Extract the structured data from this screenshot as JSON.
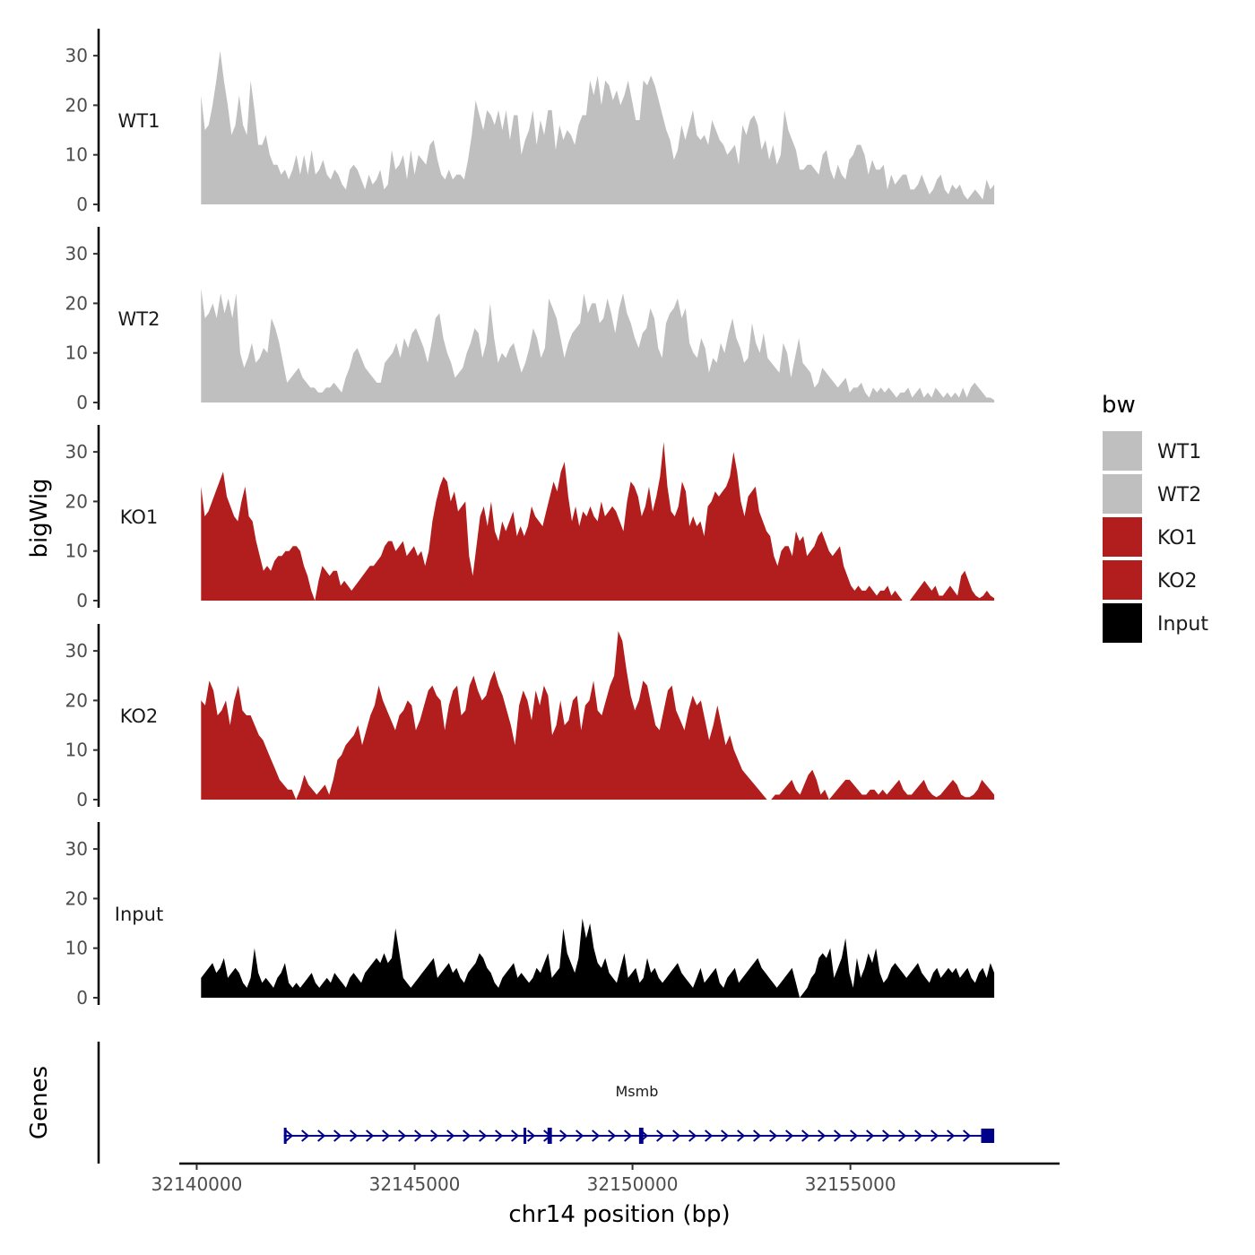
{
  "chart_data": {
    "type": "area",
    "chromosome": "chr14",
    "xlabel": "chr14 position (bp)",
    "ylabel": "bigWig",
    "genes_label": "Genes",
    "xlim": [
      32139600,
      32159800
    ],
    "data_range": [
      32140100,
      32158300
    ],
    "ylim": [
      0,
      36
    ],
    "x_ticks": [
      32140000,
      32145000,
      32150000,
      32155000
    ],
    "x_tick_labels": [
      "32140000",
      "32145000",
      "32150000",
      "32155000"
    ],
    "y_ticks": [
      0,
      10,
      20,
      30
    ],
    "y_tick_labels": [
      "0",
      "10",
      "20",
      "30"
    ],
    "legend": {
      "title": "bw",
      "entries": [
        {
          "label": "WT1",
          "color": "#bfbfbf"
        },
        {
          "label": "WT2",
          "color": "#bfbfbf"
        },
        {
          "label": "KO1",
          "color": "#b21e1e"
        },
        {
          "label": "KO2",
          "color": "#b21e1e"
        },
        {
          "label": "Input",
          "color": "#000000"
        }
      ]
    },
    "series": [
      {
        "name": "WT1",
        "color": "#bfbfbf",
        "values": [
          22,
          15,
          16,
          20,
          25,
          31,
          25,
          20,
          14,
          16,
          22,
          16,
          14,
          25,
          19,
          12,
          12,
          14,
          10,
          8,
          8,
          6,
          7,
          5,
          7,
          10,
          6,
          10,
          6,
          11,
          6,
          7,
          9,
          6,
          5,
          7,
          6,
          4,
          3,
          7,
          8,
          7,
          5,
          3,
          6,
          4,
          5,
          7,
          3,
          4,
          11,
          7,
          8,
          10,
          5,
          11,
          6,
          10,
          9,
          8,
          12,
          13,
          9,
          6,
          5,
          7,
          5,
          6,
          6,
          5,
          9,
          14,
          21,
          18,
          15,
          19,
          18,
          16,
          19,
          15,
          19,
          13,
          18,
          18,
          10,
          13,
          15,
          19,
          12,
          17,
          14,
          19,
          19,
          11,
          16,
          13,
          15,
          14,
          12,
          16,
          18,
          18,
          25,
          22,
          26,
          20,
          25,
          24,
          21,
          23,
          20,
          22,
          25,
          21,
          17,
          17,
          25,
          24,
          26,
          24,
          21,
          18,
          15,
          13,
          9,
          11,
          16,
          13,
          16,
          19,
          14,
          13,
          14,
          12,
          17,
          15,
          13,
          12,
          10,
          11,
          12,
          8,
          16,
          14,
          17,
          18,
          16,
          11,
          13,
          9,
          12,
          8,
          10,
          19,
          15,
          13,
          11,
          7,
          7,
          8,
          8,
          7,
          6,
          10,
          11,
          7,
          5,
          8,
          6,
          5,
          9,
          10,
          12,
          12,
          10,
          6,
          9,
          7,
          7,
          8,
          3,
          6,
          4,
          5,
          6,
          6,
          3,
          3,
          4,
          6,
          4,
          2,
          3,
          5,
          6,
          3,
          2,
          4,
          3,
          4,
          2,
          1,
          2,
          3,
          2,
          1,
          5,
          3,
          4
        ]
      },
      {
        "name": "WT2",
        "color": "#bfbfbf",
        "values": [
          23,
          17,
          18,
          20,
          17,
          22,
          18,
          21,
          17,
          22,
          10,
          7,
          9,
          12,
          8,
          9,
          11,
          10,
          17,
          15,
          12,
          8,
          4,
          5,
          6,
          7,
          5,
          4,
          3,
          3,
          2,
          2,
          3,
          3,
          4,
          3,
          2,
          5,
          7,
          10,
          11,
          9,
          7,
          6,
          5,
          4,
          4,
          8,
          9,
          10,
          12,
          9,
          13,
          11,
          14,
          15,
          13,
          11,
          8,
          12,
          17,
          18,
          13,
          10,
          8,
          5,
          6,
          7,
          10,
          12,
          15,
          14,
          9,
          12,
          20,
          13,
          8,
          10,
          9,
          11,
          12,
          9,
          6,
          8,
          11,
          15,
          13,
          9,
          11,
          21,
          19,
          17,
          13,
          9,
          12,
          14,
          15,
          16,
          22,
          18,
          20,
          20,
          16,
          17,
          21,
          18,
          14,
          19,
          22,
          18,
          16,
          13,
          11,
          14,
          15,
          19,
          17,
          11,
          9,
          16,
          18,
          19,
          21,
          17,
          19,
          12,
          10,
          9,
          13,
          11,
          6,
          9,
          8,
          12,
          10,
          14,
          17,
          13,
          11,
          8,
          9,
          16,
          12,
          10,
          14,
          9,
          8,
          7,
          6,
          12,
          10,
          5,
          9,
          13,
          8,
          7,
          6,
          3,
          4,
          7,
          6,
          5,
          4,
          3,
          4,
          5,
          2,
          3,
          3,
          4,
          2,
          1,
          3,
          2,
          3,
          2,
          3,
          2,
          1,
          2,
          2,
          3,
          1,
          2,
          3,
          1,
          2,
          1,
          3,
          2,
          1,
          2,
          1,
          2,
          1,
          3,
          1,
          3,
          4,
          3,
          2,
          1,
          1,
          0.5
        ]
      },
      {
        "name": "KO1",
        "color": "#b21e1e",
        "values": [
          23,
          17,
          18,
          20,
          22,
          24,
          26,
          21,
          19,
          17,
          16,
          20,
          23,
          17,
          16,
          12,
          9,
          6,
          7,
          6,
          8,
          9,
          9,
          10,
          10,
          11,
          11,
          10,
          7,
          5,
          2,
          0,
          4,
          7,
          6,
          5,
          6,
          6,
          3,
          4,
          3,
          2,
          3,
          4,
          5,
          6,
          7,
          7,
          8,
          9,
          11,
          12,
          12,
          10,
          11,
          12,
          9,
          10,
          11,
          9,
          10,
          7,
          10,
          16,
          20,
          23,
          25,
          24,
          20,
          22,
          18,
          19,
          20,
          9,
          5,
          11,
          17,
          19,
          15,
          20,
          14,
          12,
          16,
          14,
          16,
          18,
          13,
          15,
          13,
          15,
          19,
          17,
          16,
          15,
          18,
          21,
          24,
          22,
          26,
          28,
          21,
          16,
          19,
          15,
          18,
          17,
          19,
          17,
          16,
          20,
          17,
          18,
          19,
          18,
          16,
          14,
          20,
          24,
          23,
          21,
          17,
          19,
          23,
          18,
          21,
          25,
          32,
          23,
          18,
          17,
          19,
          24,
          22,
          15,
          17,
          15,
          16,
          13,
          19,
          20,
          22,
          21,
          22,
          23,
          25,
          30,
          26,
          20,
          17,
          21,
          22,
          23,
          18,
          16,
          14,
          13,
          9,
          7,
          10,
          11,
          11,
          9,
          14,
          12,
          13,
          9,
          10,
          11,
          13,
          14,
          12,
          10,
          9,
          10,
          11,
          7,
          5,
          3,
          2,
          3,
          2,
          2,
          3,
          2,
          1,
          2,
          2,
          3,
          1,
          2,
          1,
          0,
          0,
          0,
          1,
          2,
          3,
          4,
          3,
          2,
          3,
          1,
          1,
          2,
          3,
          2,
          1,
          5,
          6,
          4,
          2,
          1,
          0.5,
          1,
          2,
          1,
          0.5
        ]
      },
      {
        "name": "KO2",
        "color": "#b21e1e",
        "values": [
          20,
          19,
          24,
          22,
          17,
          18,
          20,
          15,
          20,
          23,
          18,
          17,
          17,
          15,
          13,
          12,
          10,
          8,
          6,
          4,
          3,
          2,
          2,
          0,
          2,
          5,
          3,
          2,
          1,
          2,
          3,
          1,
          4,
          8,
          9,
          11,
          12,
          13,
          15,
          11,
          14,
          17,
          19,
          23,
          20,
          18,
          16,
          14,
          17,
          18,
          20,
          19,
          14,
          16,
          19,
          22,
          23,
          21,
          20,
          14,
          19,
          22,
          23,
          17,
          18,
          23,
          25,
          22,
          20,
          21,
          24,
          26,
          23,
          21,
          18,
          15,
          11,
          19,
          22,
          20,
          16,
          22,
          19,
          23,
          21,
          13,
          15,
          20,
          15,
          16,
          20,
          21,
          14,
          19,
          20,
          24,
          18,
          17,
          20,
          23,
          25,
          34,
          32,
          26,
          21,
          18,
          20,
          24,
          23,
          19,
          15,
          14,
          18,
          22,
          23,
          18,
          16,
          14,
          18,
          21,
          19,
          20,
          16,
          12,
          15,
          19,
          15,
          11,
          13,
          10,
          8,
          6,
          5,
          4,
          3,
          2,
          1,
          0,
          0,
          1,
          1,
          2,
          3,
          4,
          2,
          1,
          3,
          5,
          6,
          4,
          1,
          2,
          0,
          1,
          2,
          3,
          4,
          4,
          3,
          2,
          1,
          1,
          2,
          2,
          1,
          2,
          1,
          2,
          3,
          4,
          2,
          1,
          1,
          2,
          3,
          4,
          2,
          1,
          0.5,
          1,
          2,
          3,
          4,
          3,
          1,
          0.5,
          0.5,
          1,
          2,
          4,
          3,
          2,
          1
        ]
      },
      {
        "name": "Input",
        "color": "#000000",
        "values": [
          4,
          5,
          6,
          7,
          5,
          6,
          8,
          4,
          5,
          6,
          5,
          3,
          2,
          4,
          10,
          5,
          3,
          4,
          3,
          2,
          4,
          5,
          7,
          3,
          2,
          3,
          2,
          3,
          4,
          5,
          3,
          2,
          3,
          4,
          3,
          5,
          4,
          3,
          2,
          4,
          5,
          4,
          3,
          5,
          6,
          7,
          8,
          7,
          9,
          7,
          8,
          14,
          9,
          4,
          3,
          2,
          3,
          4,
          5,
          6,
          7,
          8,
          4,
          5,
          6,
          7,
          5,
          6,
          4,
          3,
          5,
          6,
          7,
          9,
          8,
          6,
          5,
          3,
          2,
          4,
          5,
          6,
          7,
          4,
          5,
          4,
          3,
          4,
          6,
          5,
          7,
          9,
          4,
          5,
          6,
          14,
          9,
          7,
          5,
          8,
          16,
          12,
          15,
          10,
          7,
          6,
          8,
          5,
          4,
          3,
          6,
          9,
          4,
          5,
          6,
          3,
          4,
          8,
          5,
          6,
          4,
          3,
          4,
          5,
          6,
          7,
          5,
          4,
          3,
          2,
          4,
          6,
          3,
          4,
          5,
          6,
          3,
          2,
          4,
          5,
          6,
          3,
          4,
          5,
          6,
          7,
          8,
          6,
          5,
          4,
          3,
          2,
          3,
          4,
          5,
          6,
          3,
          0,
          1,
          2,
          4,
          5,
          8,
          9,
          8,
          10,
          4,
          6,
          8,
          12,
          5,
          2,
          8,
          4,
          6,
          9,
          7,
          10,
          5,
          3,
          4,
          6,
          7,
          6,
          5,
          4,
          5,
          6,
          7,
          5,
          4,
          3,
          5,
          6,
          4,
          5,
          6,
          5,
          6,
          4,
          5,
          6,
          4,
          3,
          5,
          6,
          4,
          7,
          5
        ]
      }
    ],
    "genes": [
      {
        "name": "Msmb",
        "strand": "+",
        "start": 32142000,
        "end": 32158200,
        "exons": [
          {
            "start": 32142000,
            "end": 32142020
          },
          {
            "start": 32147500,
            "end": 32147520
          },
          {
            "start": 32148050,
            "end": 32148150
          },
          {
            "start": 32150150,
            "end": 32150250
          },
          {
            "start": 32158000,
            "end": 32158300
          }
        ]
      }
    ]
  }
}
